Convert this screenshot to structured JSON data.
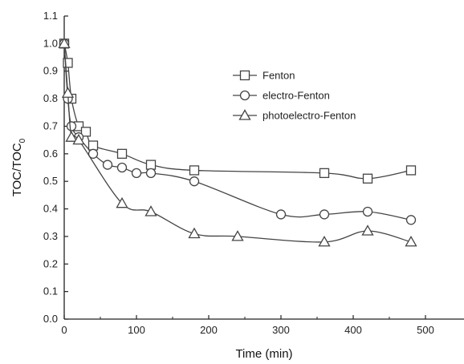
{
  "chart_data": {
    "type": "line",
    "xlabel": "Time (min)",
    "ylabel_main": "TOC/TOC",
    "ylabel_sub": "0",
    "xlim": [
      0,
      550
    ],
    "ylim": [
      0.0,
      1.1
    ],
    "xticks": [
      0,
      100,
      200,
      300,
      400,
      500
    ],
    "yticks": [
      0.0,
      0.1,
      0.2,
      0.3,
      0.4,
      0.5,
      0.6,
      0.7,
      0.8,
      0.9,
      1.0,
      1.1
    ],
    "legend_position": "top-right",
    "grid": false,
    "series": [
      {
        "name": "Fenton",
        "marker": "square",
        "x": [
          0,
          5,
          10,
          20,
          30,
          40,
          80,
          120,
          180,
          360,
          420,
          480
        ],
        "y": [
          1.0,
          0.93,
          0.8,
          0.7,
          0.68,
          0.63,
          0.6,
          0.56,
          0.54,
          0.53,
          0.51,
          0.54
        ]
      },
      {
        "name": "electro-Fenton",
        "marker": "circle",
        "x": [
          0,
          5,
          10,
          20,
          40,
          60,
          80,
          100,
          120,
          180,
          300,
          360,
          420,
          480
        ],
        "y": [
          1.0,
          0.8,
          0.7,
          0.66,
          0.6,
          0.56,
          0.55,
          0.53,
          0.53,
          0.5,
          0.38,
          0.38,
          0.39,
          0.36
        ]
      },
      {
        "name": "photoelectro-Fenton",
        "marker": "triangle",
        "x": [
          0,
          5,
          10,
          20,
          80,
          120,
          180,
          240,
          360,
          420,
          480
        ],
        "y": [
          1.0,
          0.82,
          0.66,
          0.65,
          0.42,
          0.39,
          0.31,
          0.3,
          0.28,
          0.32,
          0.28
        ]
      }
    ]
  },
  "colors": {
    "axis": "#222222",
    "series": "#444444",
    "marker_fill": "#ffffff"
  }
}
